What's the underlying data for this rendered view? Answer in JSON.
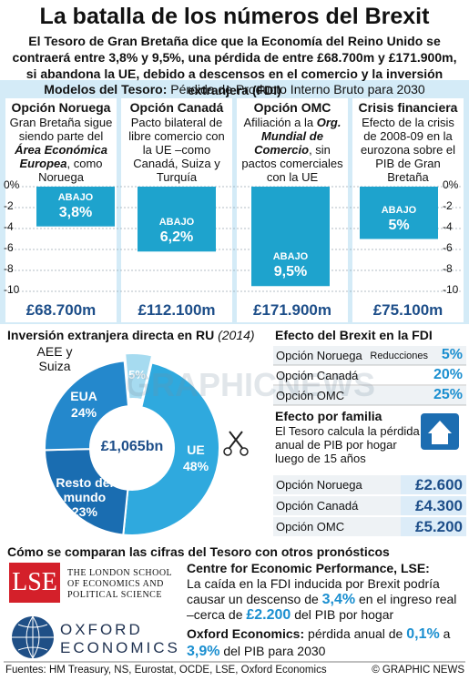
{
  "title": "La batalla de los números del Brexit",
  "subtitle": "El Tesoro de Gran Bretaña dice que la Economía del Reino Unido se contraerá entre 3,8% y 9,5%, una pérdida de entre £68.700m y £171.900m, si abandona la UE, debido a descensos en el comercio y la inversión extranjera (FDI)",
  "watermark": "GRAPHICNEWS",
  "chart_data": [
    {
      "type": "bar",
      "title": "Modelos del Tesoro:",
      "subtitle": "Pérdida de Producto Interno Bruto para 2030",
      "categories": [
        "Opción Noruega",
        "Opción Canadá",
        "Opción OMC",
        "Crisis financiera"
      ],
      "descriptions": [
        [
          {
            "text": "Gran Bretaña sigue siendo parte del "
          },
          {
            "text": "Área Económica Europea",
            "em": true
          },
          {
            "text": ", como Noruega"
          }
        ],
        [
          {
            "text": "Pacto bilateral de libre comercio con la UE –como Canadá, Suiza y Turquía"
          }
        ],
        [
          {
            "text": "Afiliación a la "
          },
          {
            "text": "Org. Mundial de Comercio",
            "em": true
          },
          {
            "text": ", sin pactos comerciales con la UE"
          }
        ],
        [
          {
            "text": "Efecto de la crisis de 2008-09 en la eurozona sobre el PIB de Gran Bretaña"
          }
        ]
      ],
      "values": [
        -3.8,
        -6.2,
        -9.5,
        -5
      ],
      "value_labels": [
        "3,8%",
        "6,2%",
        "9,5%",
        "5%"
      ],
      "bar_text": "ABAJO",
      "totals": [
        "£68.700m",
        "£112.100m",
        "£171.900m",
        "£75.100m"
      ],
      "color": "#1ea3cd",
      "ylim": [
        -10.8,
        0
      ],
      "yticks": [
        {
          "value": 0,
          "label": "0%"
        },
        -2,
        -4,
        -6,
        -8,
        -10
      ],
      "grid": true
    },
    {
      "type": "donut",
      "title": "Inversión extranjera directa en RU",
      "title_note": "(2014)",
      "center_label": "£1,065bn",
      "categories": [
        "AEE y Suiza",
        "UE",
        "Resto del mundo",
        "EUA"
      ],
      "values": [
        5,
        48,
        23,
        24
      ],
      "value_labels": [
        "5%",
        "48%",
        "23%",
        "24%"
      ],
      "colors": [
        "#a6dbf0",
        "#2fa9de",
        "#1a6db1",
        "#2488cc"
      ]
    }
  ],
  "fdi_effect": {
    "title": "Efecto del Brexit en la FDI",
    "note": "Reducciones",
    "rows": [
      {
        "label": "Opción Noruega",
        "value": "5%"
      },
      {
        "label": "Opción Canadá",
        "value": "20%"
      },
      {
        "label": "Opción OMC",
        "value": "25%"
      }
    ]
  },
  "household": {
    "title": "Efecto por familia",
    "text": "El Tesoro calcula la pérdida anual de PIB por hogar luego de 15 años",
    "rows": [
      {
        "label": "Opción Noruega",
        "value": "£2.600"
      },
      {
        "label": "Opción Canadá",
        "value": "£4.300"
      },
      {
        "label": "Opción OMC",
        "value": "£5.200"
      }
    ]
  },
  "comparison": {
    "title": "Cómo se comparan las cifras del Tesoro con otros pronósticos",
    "lse_logo": "LSE",
    "lse_name": [
      "THE LONDON SCHOOL",
      "OF ECONOMICS AND",
      "POLITICAL SCIENCE"
    ],
    "oxford_logo": [
      "OXFORD",
      "ECONOMICS"
    ],
    "cep": {
      "title": "Centre for Economic Performance, LSE:",
      "segments": [
        {
          "text": "La caída en la FDI inducida por Brexit podría causar un descenso de "
        },
        {
          "text": "3,4%",
          "em": true
        },
        {
          "text": " en el ingreso real –cerca de "
        },
        {
          "text": "£2.200",
          "em": true
        },
        {
          "text": " del PIB por hogar"
        }
      ]
    },
    "oxford": {
      "title": "Oxford Economics:",
      "segments": [
        {
          "text": " pérdida anual de "
        },
        {
          "text": "0,1%",
          "em": true
        },
        {
          "text": " a "
        },
        {
          "text": "3,9%",
          "em": true
        },
        {
          "text": " del PIB para 2030"
        }
      ]
    }
  },
  "footer": {
    "sources": "Fuentes: HM Treasury, NS, Eurostat, OCDE, LSE, Oxford Economics",
    "credit": "© GRAPHIC NEWS"
  }
}
